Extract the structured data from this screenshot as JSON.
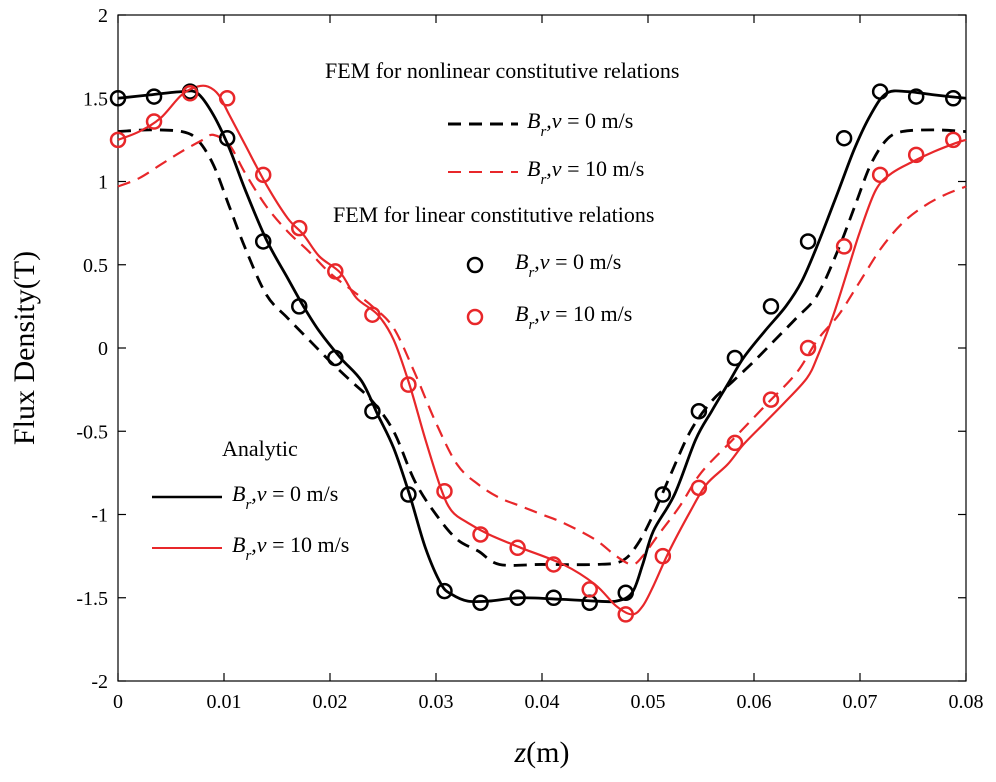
{
  "chart_data": {
    "type": "line",
    "xlabel_italic": "z",
    "xlabel_unit": "(m)",
    "ylabel": "Flux Density(T)",
    "xlim": [
      0,
      0.08
    ],
    "ylim": [
      -2,
      2
    ],
    "xticks": [
      "0",
      "0.01",
      "0.02",
      "0.03",
      "0.04",
      "0.05",
      "0.06",
      "0.07",
      "0.08"
    ],
    "yticks": [
      "2",
      "1.5",
      "1",
      "0.5",
      "0",
      "-0.5",
      "-1",
      "-1.5",
      "-2"
    ],
    "grid": false,
    "series": [
      {
        "name": "Analytic B_r, v = 0 m/s",
        "group": "analytic",
        "color": "#000000",
        "style": "solid",
        "x": [
          0,
          0.003,
          0.006,
          0.0075,
          0.009,
          0.0105,
          0.012,
          0.014,
          0.016,
          0.0175,
          0.019,
          0.021,
          0.023,
          0.0245,
          0.026,
          0.0275,
          0.029,
          0.0305,
          0.0315,
          0.033,
          0.035,
          0.038,
          0.042,
          0.045,
          0.047,
          0.0485,
          0.0495,
          0.0505,
          0.0525,
          0.0545,
          0.056,
          0.0575,
          0.059,
          0.061,
          0.063,
          0.0645,
          0.066,
          0.068,
          0.0695,
          0.071,
          0.0725,
          0.0745,
          0.077,
          0.08
        ],
        "y": [
          1.5,
          1.52,
          1.54,
          1.53,
          1.4,
          1.2,
          0.95,
          0.65,
          0.42,
          0.25,
          0.1,
          -0.06,
          -0.2,
          -0.4,
          -0.6,
          -0.88,
          -1.2,
          -1.42,
          -1.48,
          -1.52,
          -1.52,
          -1.5,
          -1.51,
          -1.52,
          -1.52,
          -1.47,
          -1.3,
          -1.1,
          -0.88,
          -0.55,
          -0.38,
          -0.22,
          -0.06,
          0.1,
          0.25,
          0.4,
          0.62,
          0.95,
          1.2,
          1.4,
          1.53,
          1.54,
          1.52,
          1.5
        ]
      },
      {
        "name": "Analytic B_r, v = 10 m/s",
        "group": "analytic",
        "color": "#e8272a",
        "style": "solid",
        "x": [
          0,
          0.002,
          0.004,
          0.006,
          0.0075,
          0.0085,
          0.0095,
          0.0105,
          0.012,
          0.014,
          0.016,
          0.0175,
          0.019,
          0.021,
          0.0225,
          0.0245,
          0.026,
          0.0275,
          0.029,
          0.0305,
          0.0315,
          0.033,
          0.035,
          0.038,
          0.042,
          0.045,
          0.047,
          0.0485,
          0.0495,
          0.0505,
          0.052,
          0.054,
          0.0555,
          0.0575,
          0.059,
          0.061,
          0.063,
          0.065,
          0.066,
          0.0675,
          0.069,
          0.07,
          0.0715,
          0.073,
          0.075,
          0.077,
          0.079,
          0.08
        ],
        "y": [
          1.25,
          1.3,
          1.38,
          1.52,
          1.57,
          1.57,
          1.52,
          1.4,
          1.22,
          0.98,
          0.78,
          0.68,
          0.55,
          0.45,
          0.3,
          0.2,
          0.05,
          -0.22,
          -0.55,
          -0.85,
          -0.98,
          -1.05,
          -1.12,
          -1.2,
          -1.3,
          -1.42,
          -1.55,
          -1.6,
          -1.55,
          -1.43,
          -1.22,
          -0.98,
          -0.82,
          -0.7,
          -0.58,
          -0.45,
          -0.32,
          -0.18,
          -0.05,
          0.2,
          0.5,
          0.7,
          0.95,
          1.05,
          1.12,
          1.18,
          1.23,
          1.25
        ]
      },
      {
        "name": "FEM nonlinear B_r, v = 0 m/s",
        "group": "fem_nonlinear",
        "color": "#000000",
        "style": "dashed",
        "x": [
          0,
          0.003,
          0.006,
          0.0075,
          0.009,
          0.0105,
          0.012,
          0.014,
          0.016,
          0.018,
          0.02,
          0.022,
          0.024,
          0.026,
          0.028,
          0.03,
          0.032,
          0.034,
          0.036,
          0.04,
          0.045,
          0.0475,
          0.049,
          0.0505,
          0.052,
          0.054,
          0.056,
          0.058,
          0.06,
          0.062,
          0.064,
          0.066,
          0.068,
          0.0695,
          0.071,
          0.0725,
          0.074,
          0.077,
          0.08
        ],
        "y": [
          1.3,
          1.31,
          1.3,
          1.25,
          1.1,
          0.85,
          0.6,
          0.32,
          0.18,
          0.05,
          -0.08,
          -0.2,
          -0.32,
          -0.5,
          -0.8,
          -1.0,
          -1.15,
          -1.22,
          -1.3,
          -1.3,
          -1.3,
          -1.28,
          -1.18,
          -1.0,
          -0.78,
          -0.5,
          -0.32,
          -0.2,
          -0.08,
          0.05,
          0.18,
          0.32,
          0.6,
          0.85,
          1.1,
          1.25,
          1.3,
          1.31,
          1.3
        ]
      },
      {
        "name": "FEM nonlinear B_r, v = 10 m/s",
        "group": "fem_nonlinear",
        "color": "#e8272a",
        "style": "dashed",
        "x": [
          0,
          0.002,
          0.004,
          0.006,
          0.008,
          0.009,
          0.0105,
          0.012,
          0.014,
          0.016,
          0.018,
          0.02,
          0.022,
          0.024,
          0.026,
          0.028,
          0.03,
          0.032,
          0.034,
          0.036,
          0.038,
          0.04,
          0.042,
          0.045,
          0.047,
          0.0485,
          0.0495,
          0.051,
          0.053,
          0.055,
          0.058,
          0.061,
          0.064,
          0.066,
          0.068,
          0.07,
          0.072,
          0.074,
          0.076,
          0.078,
          0.08
        ],
        "y": [
          0.97,
          1.02,
          1.1,
          1.18,
          1.25,
          1.28,
          1.22,
          1.05,
          0.85,
          0.7,
          0.58,
          0.45,
          0.35,
          0.25,
          0.12,
          -0.15,
          -0.45,
          -0.7,
          -0.82,
          -0.9,
          -0.95,
          -1.0,
          -1.05,
          -1.15,
          -1.25,
          -1.3,
          -1.25,
          -1.12,
          -0.95,
          -0.75,
          -0.55,
          -0.35,
          -0.15,
          0.05,
          0.2,
          0.4,
          0.6,
          0.75,
          0.85,
          0.92,
          0.97
        ]
      },
      {
        "name": "FEM linear B_r, v = 0 m/s",
        "group": "fem_linear",
        "color": "#000000",
        "style": "markers",
        "x": [
          0,
          0.0034,
          0.0068,
          0.0103,
          0.0137,
          0.0171,
          0.0205,
          0.024,
          0.0274,
          0.0308,
          0.0342,
          0.0377,
          0.0411,
          0.0445,
          0.0479,
          0.0514,
          0.0548,
          0.0582,
          0.0616,
          0.0651,
          0.0685,
          0.0719,
          0.0753,
          0.0788
        ],
        "y": [
          1.5,
          1.51,
          1.54,
          1.26,
          0.64,
          0.25,
          -0.06,
          -0.38,
          -0.88,
          -1.46,
          -1.53,
          -1.5,
          -1.5,
          -1.53,
          -1.47,
          -0.88,
          -0.38,
          -0.06,
          0.25,
          0.64,
          1.26,
          1.54,
          1.51,
          1.5
        ]
      },
      {
        "name": "FEM linear B_r, v = 10 m/s",
        "group": "fem_linear",
        "color": "#e8272a",
        "style": "markers",
        "x": [
          0,
          0.0034,
          0.0068,
          0.0103,
          0.0137,
          0.0171,
          0.0205,
          0.024,
          0.0274,
          0.0308,
          0.0342,
          0.0377,
          0.0411,
          0.0445,
          0.0479,
          0.0514,
          0.0548,
          0.0582,
          0.0616,
          0.0651,
          0.0685,
          0.0719,
          0.0753,
          0.0788
        ],
        "y": [
          1.25,
          1.36,
          1.53,
          1.5,
          1.04,
          0.72,
          0.46,
          0.2,
          -0.22,
          -0.86,
          -1.12,
          -1.2,
          -1.3,
          -1.45,
          -1.6,
          -1.25,
          -0.84,
          -0.57,
          -0.31,
          0.0,
          0.61,
          1.04,
          1.16,
          1.25
        ]
      }
    ],
    "legend": {
      "fem_nonlinear_title": "FEM for nonlinear constitutive relations",
      "fem_linear_title": "FEM for linear constitutive relations",
      "analytic_title": "Analytic",
      "entries": [
        {
          "id": "fn0",
          "var": "B",
          "sub": "r",
          "rest": ",",
          "v": "v",
          "tail": " = 0 m/s"
        },
        {
          "id": "fn10",
          "var": "B",
          "sub": "r",
          "rest": ",",
          "v": "v",
          "tail": " = 10 m/s"
        },
        {
          "id": "fl0",
          "var": "B",
          "sub": "r",
          "rest": ",",
          "v": "v",
          "tail": " = 0 m/s"
        },
        {
          "id": "fl10",
          "var": "B",
          "sub": "r",
          "rest": ",",
          "v": "v",
          "tail": " = 10 m/s"
        },
        {
          "id": "an0",
          "var": "B",
          "sub": "r",
          "rest": ",",
          "v": "v",
          "tail": " = 0 m/s"
        },
        {
          "id": "an10",
          "var": "B",
          "sub": "r",
          "rest": ",",
          "v": "v",
          "tail": " = 10 m/s"
        }
      ]
    }
  }
}
